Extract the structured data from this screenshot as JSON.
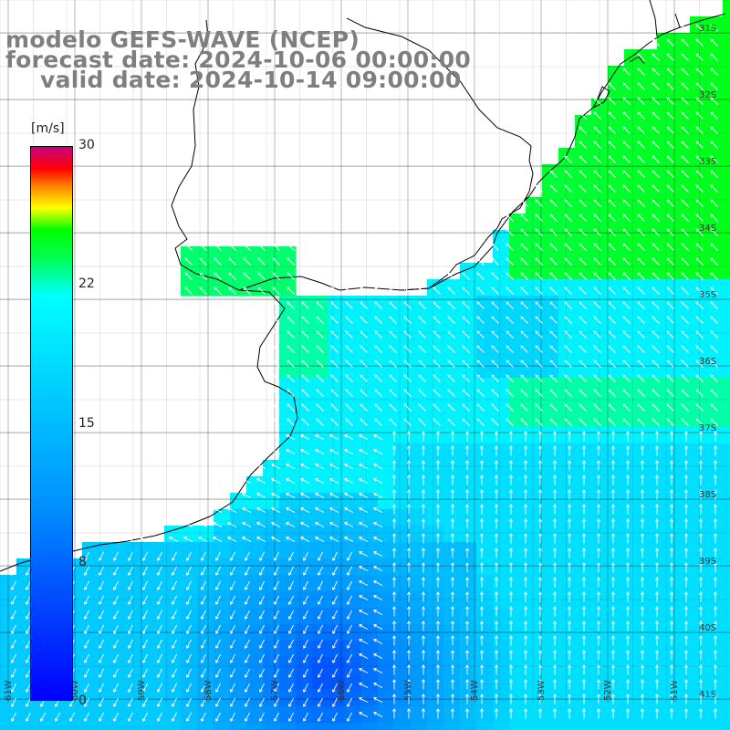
{
  "title": {
    "line1": "modelo GEFS-WAVE (NCEP)",
    "line2": "forecast date: 2024-10-06 00:00:00",
    "line3": "valid date: 2024-10-14 09:00:00"
  },
  "colorbar": {
    "unit": "[m/s]",
    "ticks": [
      "30",
      "22",
      "15",
      "8",
      "0"
    ],
    "tick_values": [
      30,
      22,
      15,
      8,
      0
    ],
    "min": 0,
    "max": 30,
    "colors": [
      "#0000ff",
      "#0090ff",
      "#00ffff",
      "#00ff50",
      "#00ff00",
      "#ffff00",
      "#ff8000",
      "#ff0000",
      "#c80080"
    ]
  },
  "latitude_labels": [
    "31S",
    "32S",
    "33S",
    "34S",
    "35S",
    "36S",
    "37S",
    "38S",
    "39S",
    "40S",
    "41S"
  ],
  "longitude_labels": [
    "61W",
    "60W",
    "59W",
    "58W",
    "57W",
    "56W",
    "55W",
    "54W",
    "53W",
    "52W",
    "51W"
  ],
  "colors": {
    "land": "#ffffff",
    "coast": "#000000",
    "grid": "#000000",
    "arrow": "#ffffff",
    "title": "#7f7f7f"
  }
}
